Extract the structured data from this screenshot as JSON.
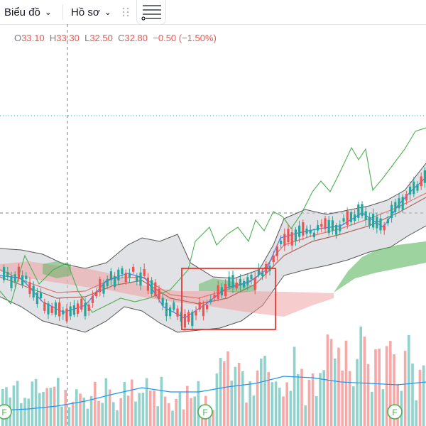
{
  "toolbar": {
    "chart_label": "Biểu đồ",
    "profile_label": "Hồ sơ",
    "chevron": "⌄",
    "icons": [
      "chevron-down-icon",
      "drag-grip-icon",
      "indicators-icon"
    ]
  },
  "legend": {
    "o_key": "O",
    "o_val": "33.10",
    "h_key": "H",
    "h_val": "33.30",
    "l_key": "L",
    "l_val": "32.50",
    "c_key": "C",
    "c_val": "32.80",
    "change": "−0.50 (−1.50%)"
  },
  "markers": {
    "label": "F"
  },
  "colors": {
    "up": "#26a69a",
    "down": "#ef5350",
    "bb_fill": "#c9cbd1",
    "cloud_bull": "#4caf50",
    "cloud_bear": "#ef9a9a",
    "lagging": "#4caf50",
    "ma_blue": "#2962ff",
    "ma_red": "#e57373",
    "ma_brown": "#b0655a",
    "highlight_box": "#e53935",
    "marker": "#4caf50"
  }
}
